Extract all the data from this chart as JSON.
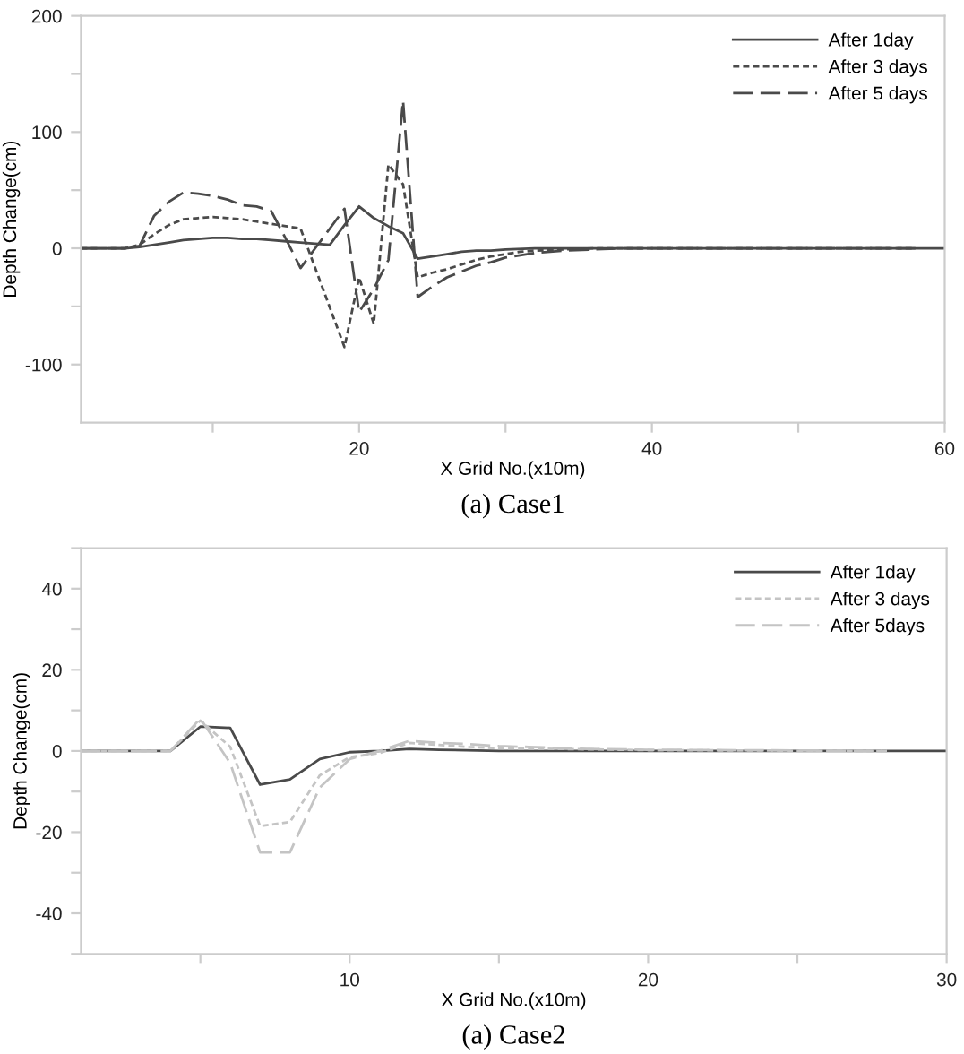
{
  "chart_data": [
    {
      "type": "line",
      "xlabel": "X Grid No.(x10m)",
      "ylabel": "Depth Change(cm)",
      "annotations": [
        "(a) Case1"
      ],
      "xlim": [
        1,
        60
      ],
      "ylim": [
        -150,
        200
      ],
      "xticks": [
        {
          "value": 10,
          "label": null
        },
        20,
        {
          "value": 30,
          "label": null
        },
        40,
        {
          "value": 50,
          "label": null
        },
        60
      ],
      "yticks": [
        -100,
        {
          "value": -50,
          "label": null
        },
        0,
        {
          "value": 50,
          "label": null
        },
        100,
        {
          "value": 150,
          "label": null
        },
        200
      ],
      "grid": false,
      "legend": "top right",
      "marker": "none",
      "series": [
        {
          "name": "After 1day",
          "color": "#4a4a4a",
          "line_style": "solid",
          "x": [
            1,
            4,
            5,
            6,
            7,
            8,
            9,
            10,
            11,
            12,
            13,
            14,
            15,
            16,
            17,
            18,
            19,
            20,
            21,
            22,
            23,
            24,
            25,
            26,
            27,
            28,
            29,
            30,
            32,
            35,
            60
          ],
          "values": [
            0,
            0,
            1,
            3,
            5,
            7,
            8,
            9,
            9,
            8,
            8,
            7,
            6,
            5,
            4,
            3,
            20,
            36,
            26,
            19,
            13,
            -9,
            -7,
            -5,
            -3,
            -2,
            -2,
            -1,
            0,
            0,
            0
          ]
        },
        {
          "name": "After 3 days",
          "color": "#4a4a4a",
          "line_style": "dotted",
          "x": [
            1,
            4,
            5,
            6,
            7,
            8,
            9,
            10,
            11,
            12,
            13,
            14,
            15,
            16,
            17,
            18,
            19,
            20,
            21,
            22,
            23,
            24,
            25,
            26,
            27,
            28,
            29,
            30,
            31,
            32,
            34,
            36,
            58
          ],
          "values": [
            0,
            0,
            3,
            12,
            20,
            25,
            26,
            27,
            26,
            25,
            23,
            21,
            19,
            17,
            -17,
            -51,
            -85,
            -25,
            -65,
            72,
            55,
            -25,
            -21,
            -18,
            -14,
            -10,
            -7,
            -5,
            -3,
            -2,
            -1,
            0,
            0
          ]
        },
        {
          "name": "After 5 days",
          "color": "#4a4a4a",
          "line_style": "dashed",
          "x": [
            1,
            4,
            5,
            6,
            7,
            8,
            9,
            10,
            11,
            12,
            13,
            14,
            15,
            16,
            17,
            18,
            19,
            20,
            21,
            22,
            23,
            24,
            25,
            26,
            27,
            28,
            29,
            30,
            31,
            32,
            34,
            36,
            38,
            58
          ],
          "values": [
            0,
            0,
            2,
            28,
            40,
            48,
            47,
            45,
            42,
            37,
            36,
            32,
            8,
            -17,
            0,
            17,
            34,
            -55,
            -35,
            -10,
            127,
            -42,
            -33,
            -25,
            -20,
            -15,
            -12,
            -8,
            -6,
            -4,
            -2,
            -1,
            0,
            0
          ]
        }
      ]
    },
    {
      "type": "line",
      "xlabel": "X Grid No.(x10m)",
      "ylabel": "Depth Change(cm)",
      "annotations": [
        "(a) Case2"
      ],
      "xlim": [
        1,
        30
      ],
      "ylim": [
        -50,
        50
      ],
      "xticks": [
        {
          "value": 5,
          "label": null
        },
        10,
        {
          "value": 15,
          "label": null
        },
        20,
        {
          "value": 25,
          "label": null
        },
        30
      ],
      "yticks": [
        {
          "value": -50,
          "label": null
        },
        -40,
        {
          "value": -30,
          "label": null
        },
        -20,
        {
          "value": -10,
          "label": null
        },
        0,
        {
          "value": 10,
          "label": null
        },
        20,
        {
          "value": 30,
          "label": null
        },
        40,
        {
          "value": 50,
          "label": null
        }
      ],
      "grid": false,
      "legend": "top right",
      "marker": "none",
      "series": [
        {
          "name": "After 1day",
          "color": "#4a4a4a",
          "line_style": "solid",
          "x": [
            1,
            4,
            5,
            6,
            7,
            8,
            9,
            10,
            11,
            12,
            13,
            15,
            30
          ],
          "values": [
            0,
            0,
            6,
            5.7,
            -8.3,
            -7,
            -2,
            -0.3,
            0,
            0.5,
            0.3,
            0,
            0
          ]
        },
        {
          "name": "After 3 days",
          "color": "#c4c4c4",
          "line_style": "dotted",
          "x": [
            1,
            4,
            5,
            6,
            7,
            8,
            9,
            10,
            11,
            12,
            13,
            14,
            15,
            17,
            20,
            28
          ],
          "values": [
            0,
            0,
            7.5,
            1,
            -18.5,
            -17.5,
            -6,
            -1.5,
            -0.5,
            2,
            1.5,
            1,
            0.7,
            0.5,
            0.2,
            0
          ]
        },
        {
          "name": "After 5days",
          "color": "#c4c4c4",
          "line_style": "dashed",
          "x": [
            1,
            4,
            5,
            6,
            7,
            8,
            9,
            10,
            11,
            12,
            13,
            14,
            15,
            16,
            18,
            20,
            28
          ],
          "values": [
            0,
            0,
            8,
            -3,
            -25,
            -25,
            -9,
            -2,
            0,
            2.5,
            2,
            1.7,
            1.2,
            1,
            0.5,
            0.3,
            0
          ]
        }
      ]
    }
  ]
}
